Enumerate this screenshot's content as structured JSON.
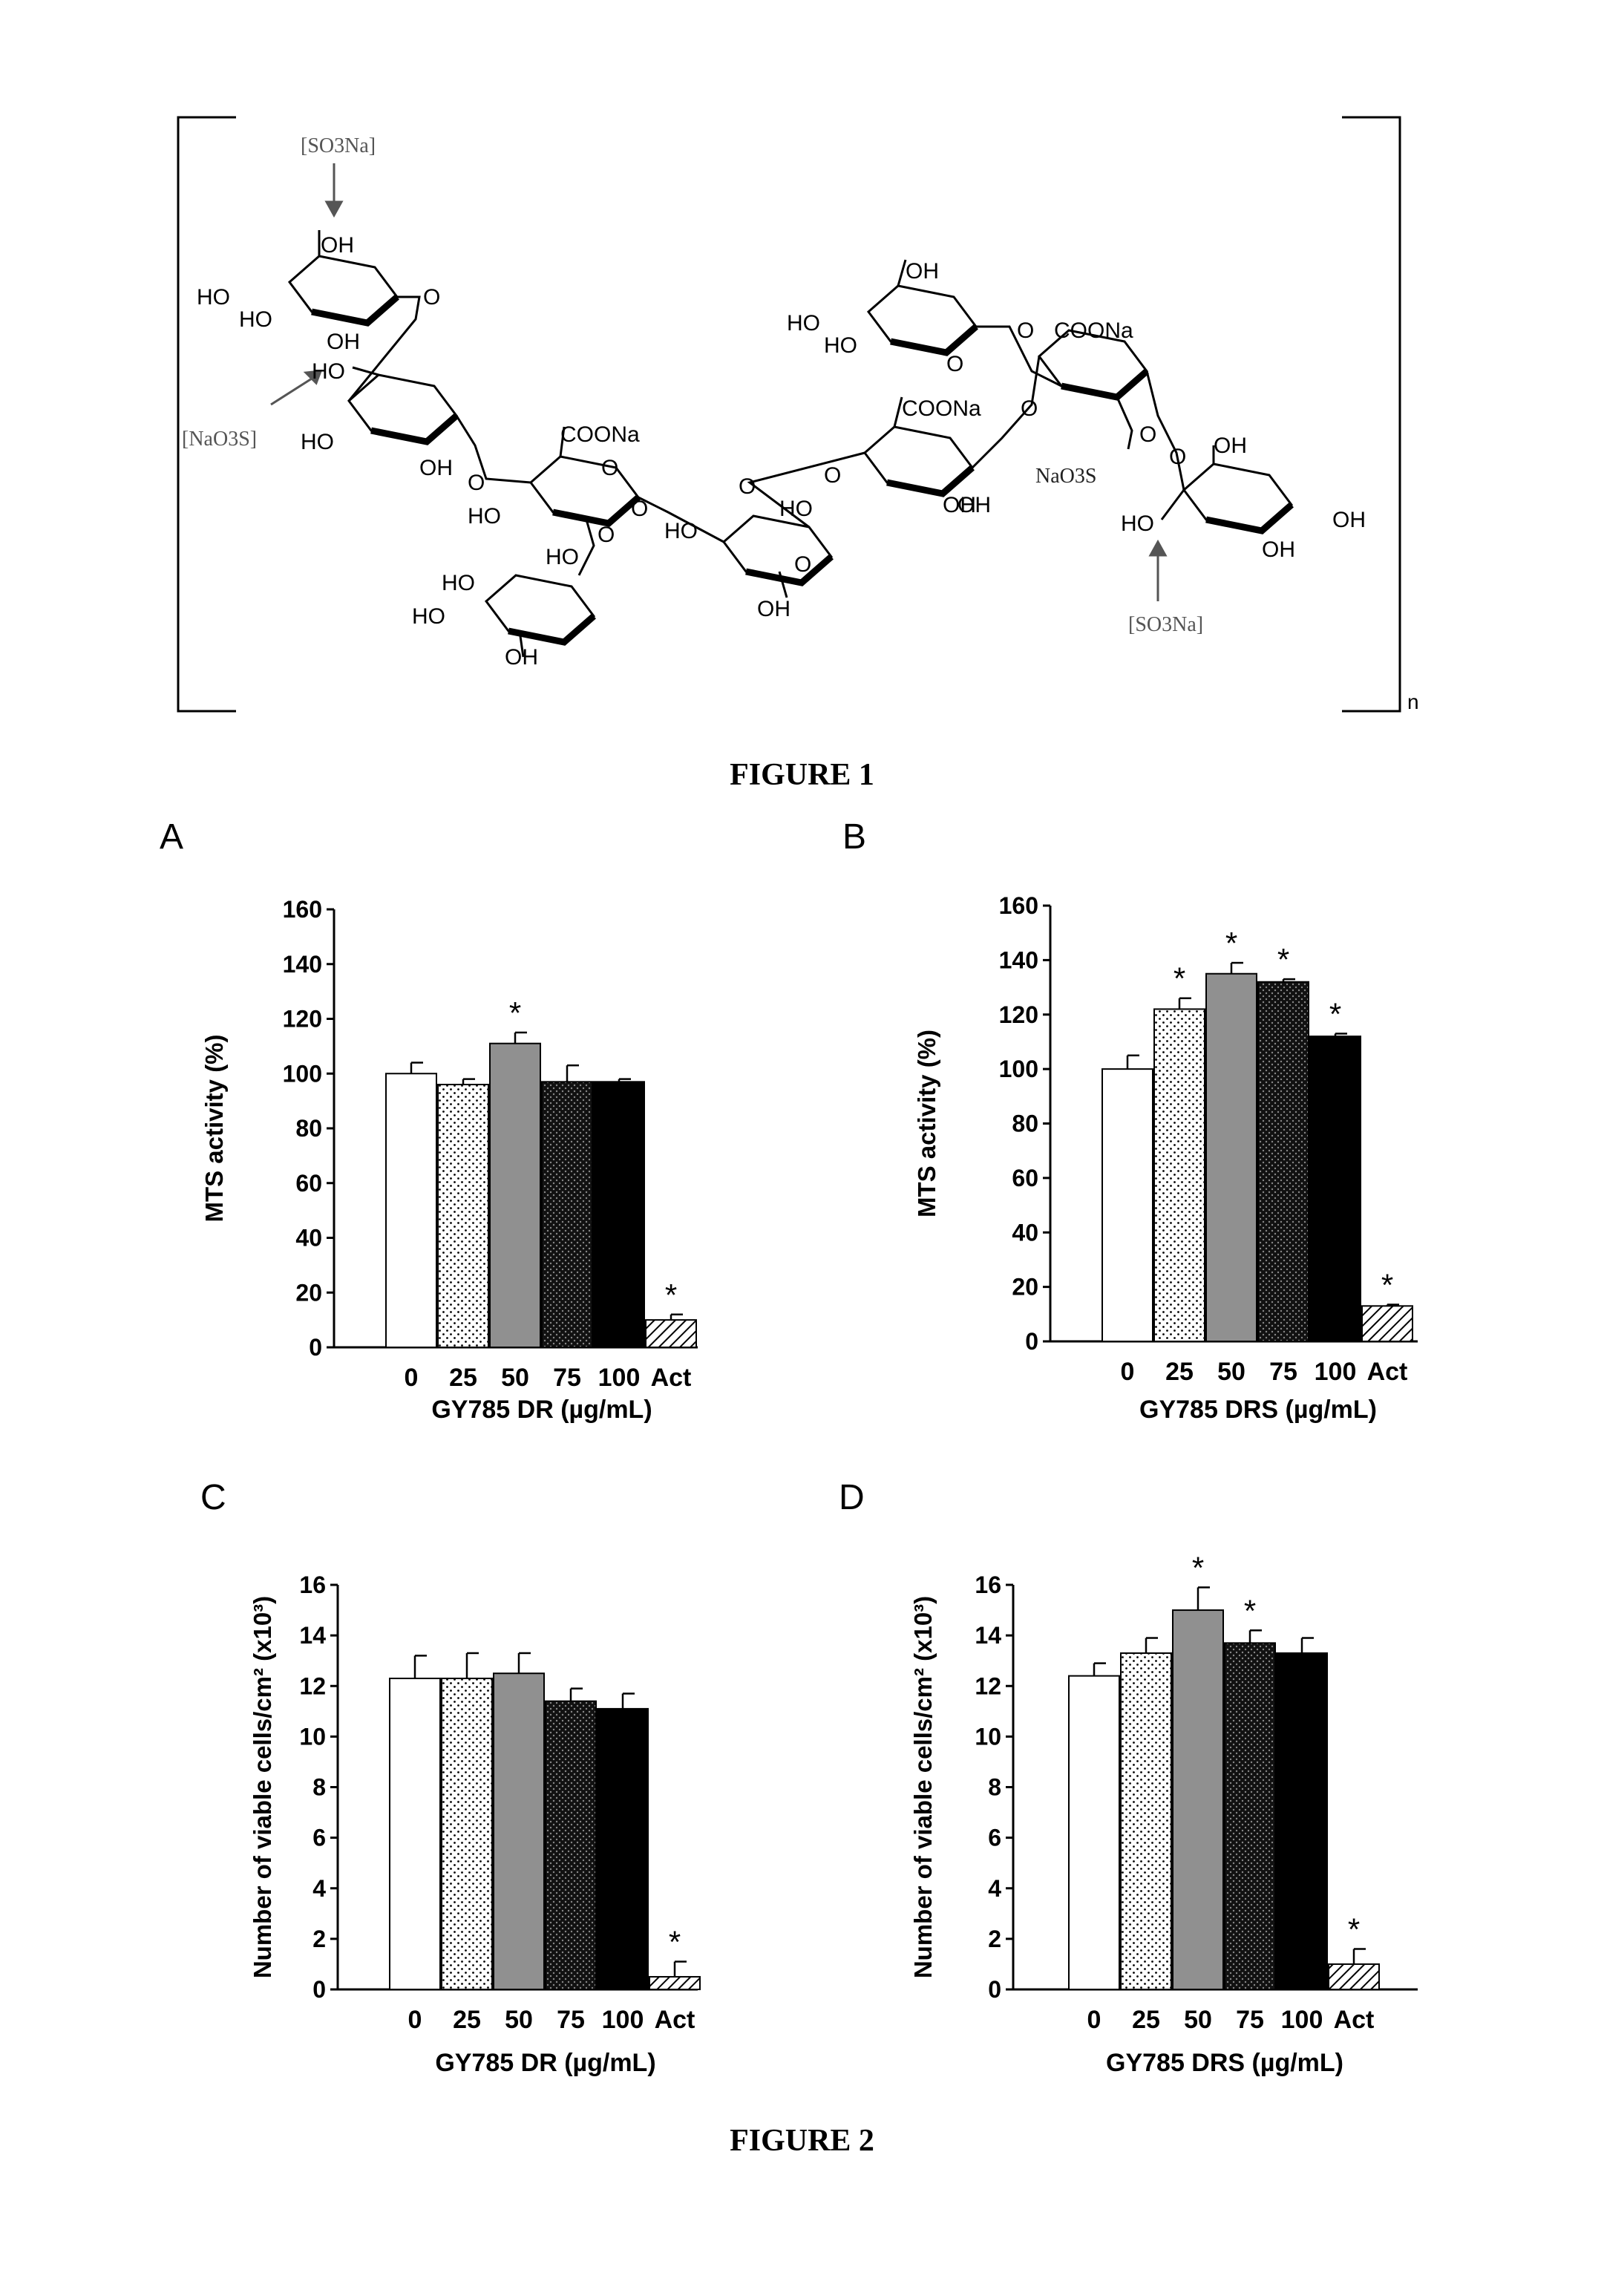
{
  "figure1": {
    "caption": "FIGURE 1",
    "repeat_subscript": "n",
    "sulfate_tags": [
      "[SO3Na]",
      "[NaO3S]",
      "NaO3S",
      "[SO3Na]"
    ],
    "substituents": [
      "OH",
      "HO",
      "HO",
      "OH",
      "O",
      "HO",
      "HO",
      "OH",
      "O",
      "COONa",
      "O",
      "HO",
      "O",
      "O",
      "HO",
      "HO",
      "HO",
      "HO",
      "OH",
      "HO",
      "OH",
      "O",
      "O",
      "OH",
      "HO",
      "HO",
      "OH",
      "O",
      "COONa",
      "O",
      "COONa",
      "O",
      "O",
      "OH",
      "O",
      "O",
      "OH",
      "HO",
      "OH",
      "OH"
    ]
  },
  "figure2": {
    "caption": "FIGURE 2",
    "panels": [
      "A",
      "B",
      "C",
      "D"
    ]
  },
  "chart_data": [
    {
      "type": "bar",
      "panel": "A",
      "categories": [
        "0",
        "25",
        "50",
        "75",
        "100",
        "Act"
      ],
      "values": [
        100,
        96,
        111,
        97,
        97,
        10
      ],
      "error": [
        4,
        2,
        4,
        6,
        1,
        2
      ],
      "significant": [
        false,
        false,
        true,
        false,
        false,
        true
      ],
      "xlabel": "GY785 DR (µg/mL)",
      "ylabel": "MTS activity (%)",
      "ylim": [
        0,
        160
      ],
      "yticks": [
        0,
        20,
        40,
        60,
        80,
        100,
        120,
        140,
        160
      ],
      "grid": false
    },
    {
      "type": "bar",
      "panel": "B",
      "categories": [
        "0",
        "25",
        "50",
        "75",
        "100",
        "Act"
      ],
      "values": [
        100,
        122,
        135,
        132,
        112,
        13
      ],
      "error": [
        5,
        4,
        4,
        1,
        1,
        0.5
      ],
      "significant": [
        false,
        true,
        true,
        true,
        true,
        true
      ],
      "xlabel": "GY785 DRS (µg/mL)",
      "ylabel": "MTS activity (%)",
      "ylim": [
        0,
        160
      ],
      "yticks": [
        0,
        20,
        40,
        60,
        80,
        100,
        120,
        140,
        160
      ],
      "grid": false
    },
    {
      "type": "bar",
      "panel": "C",
      "categories": [
        "0",
        "25",
        "50",
        "75",
        "100",
        "Act"
      ],
      "values": [
        12.3,
        12.3,
        12.5,
        11.4,
        11.1,
        0.5
      ],
      "error": [
        0.9,
        1.0,
        0.8,
        0.5,
        0.6,
        0.6
      ],
      "significant": [
        false,
        false,
        false,
        false,
        false,
        true
      ],
      "xlabel": "GY785 DR (µg/mL)",
      "ylabel": "Number of viable cells/cm² (x10³)",
      "ylim": [
        0,
        16
      ],
      "yticks": [
        0,
        2,
        4,
        6,
        8,
        10,
        12,
        14,
        16
      ],
      "grid": false
    },
    {
      "type": "bar",
      "panel": "D",
      "categories": [
        "0",
        "25",
        "50",
        "75",
        "100",
        "Act"
      ],
      "values": [
        12.4,
        13.3,
        15.0,
        13.7,
        13.3,
        1.0
      ],
      "error": [
        0.5,
        0.6,
        0.9,
        0.5,
        0.6,
        0.6
      ],
      "significant": [
        false,
        false,
        true,
        true,
        false,
        true
      ],
      "xlabel": "GY785 DRS (µg/mL)",
      "ylabel": "Number of viable cells/cm² (x10³)",
      "ylim": [
        0,
        16
      ],
      "yticks": [
        0,
        2,
        4,
        6,
        8,
        10,
        12,
        14,
        16
      ],
      "grid": false
    }
  ]
}
